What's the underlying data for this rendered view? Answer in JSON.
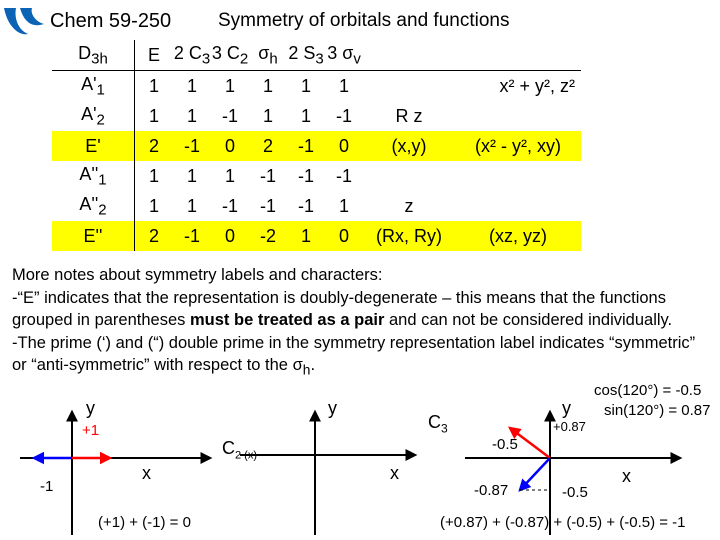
{
  "header": {
    "course": "Chem 59-250",
    "title": "Symmetry of orbitals and functions"
  },
  "table": {
    "header": [
      {
        "main": "D",
        "sub": "3h",
        "suffix": ""
      },
      {
        "main": "E",
        "sub": "",
        "suffix": ""
      },
      {
        "main": "2 C",
        "sub": "3",
        "suffix": ""
      },
      {
        "main": "3 C",
        "sub": "2",
        "suffix": ""
      },
      {
        "main": "σ",
        "sub": "h",
        "suffix": ""
      },
      {
        "main": "2 S",
        "sub": "3",
        "suffix": ""
      },
      {
        "main": "3 σ",
        "sub": "v",
        "suffix": ""
      }
    ],
    "rows": [
      {
        "label": "A'",
        "label_sub": "1",
        "chars": [
          "1",
          "1",
          "1",
          "1",
          "1",
          "1"
        ],
        "linear": "",
        "quadratic": "x² + y², z²",
        "highlight": false
      },
      {
        "label": "A'",
        "label_sub": "2",
        "chars": [
          "1",
          "1",
          "-1",
          "1",
          "1",
          "-1"
        ],
        "linear": "R z",
        "quadratic": "",
        "highlight": false
      },
      {
        "label": "E'",
        "label_sub": "",
        "chars": [
          "2",
          "-1",
          "0",
          "2",
          "-1",
          "0"
        ],
        "linear": "(x,y)",
        "quadratic": "(x² - y², xy)",
        "highlight": true
      },
      {
        "label": "A''",
        "label_sub": "1",
        "chars": [
          "1",
          "1",
          "1",
          "-1",
          "-1",
          "-1"
        ],
        "linear": "",
        "quadratic": "",
        "highlight": false
      },
      {
        "label": "A''",
        "label_sub": "2",
        "chars": [
          "1",
          "1",
          "-1",
          "-1",
          "-1",
          "1"
        ],
        "linear": "z",
        "quadratic": "",
        "highlight": false
      },
      {
        "label": "E''",
        "label_sub": "",
        "chars": [
          "2",
          "-1",
          "0",
          "-2",
          "1",
          "0"
        ],
        "linear": "(Rx, Ry)",
        "quadratic": "(xz, yz)",
        "highlight": true
      }
    ]
  },
  "notes": {
    "line1": "More notes about symmetry labels and characters:",
    "line2": "-“E” indicates that the representation is doubly-degenerate – this means that the functions grouped in parentheses",
    "line2_bold": "must be treated as a pair",
    "line2_end": "and can not be considered individually.",
    "line3": "-The prime (‘) and (“) double prime in the symmetry representation label indicates “symmetric” or “anti-symmetric” with respect to the",
    "line3_symbol": "σ",
    "line3_sub": "h",
    "line3_end": "."
  },
  "diagram1": {
    "y_label": "y",
    "x_label": "x",
    "plus": "+1",
    "minus": "-1",
    "sum": "(+1) + (-1) = 0"
  },
  "diagram2": {
    "y_label": "y",
    "x_label": "x",
    "op_main": "C",
    "op_sub": "2 (x)"
  },
  "diagram3": {
    "y_label": "y",
    "x_label": "x",
    "op_main": "C",
    "op_sub": "3",
    "v1": "+0.87",
    "v2": "-0.5",
    "v3": "-0.87",
    "v4": "-0.5",
    "cos": "cos(120°) = -0.5",
    "sin": "sin(120°) = 0.87",
    "sum": "(+0.87) + (-0.87) + (-0.5) + (-0.5) = -1"
  },
  "colors": {
    "highlight": "#ffff00",
    "axis": "#000000",
    "vector_red": "#ff0000",
    "vector_blue": "#0000ff",
    "logo": "#0a63b4"
  }
}
